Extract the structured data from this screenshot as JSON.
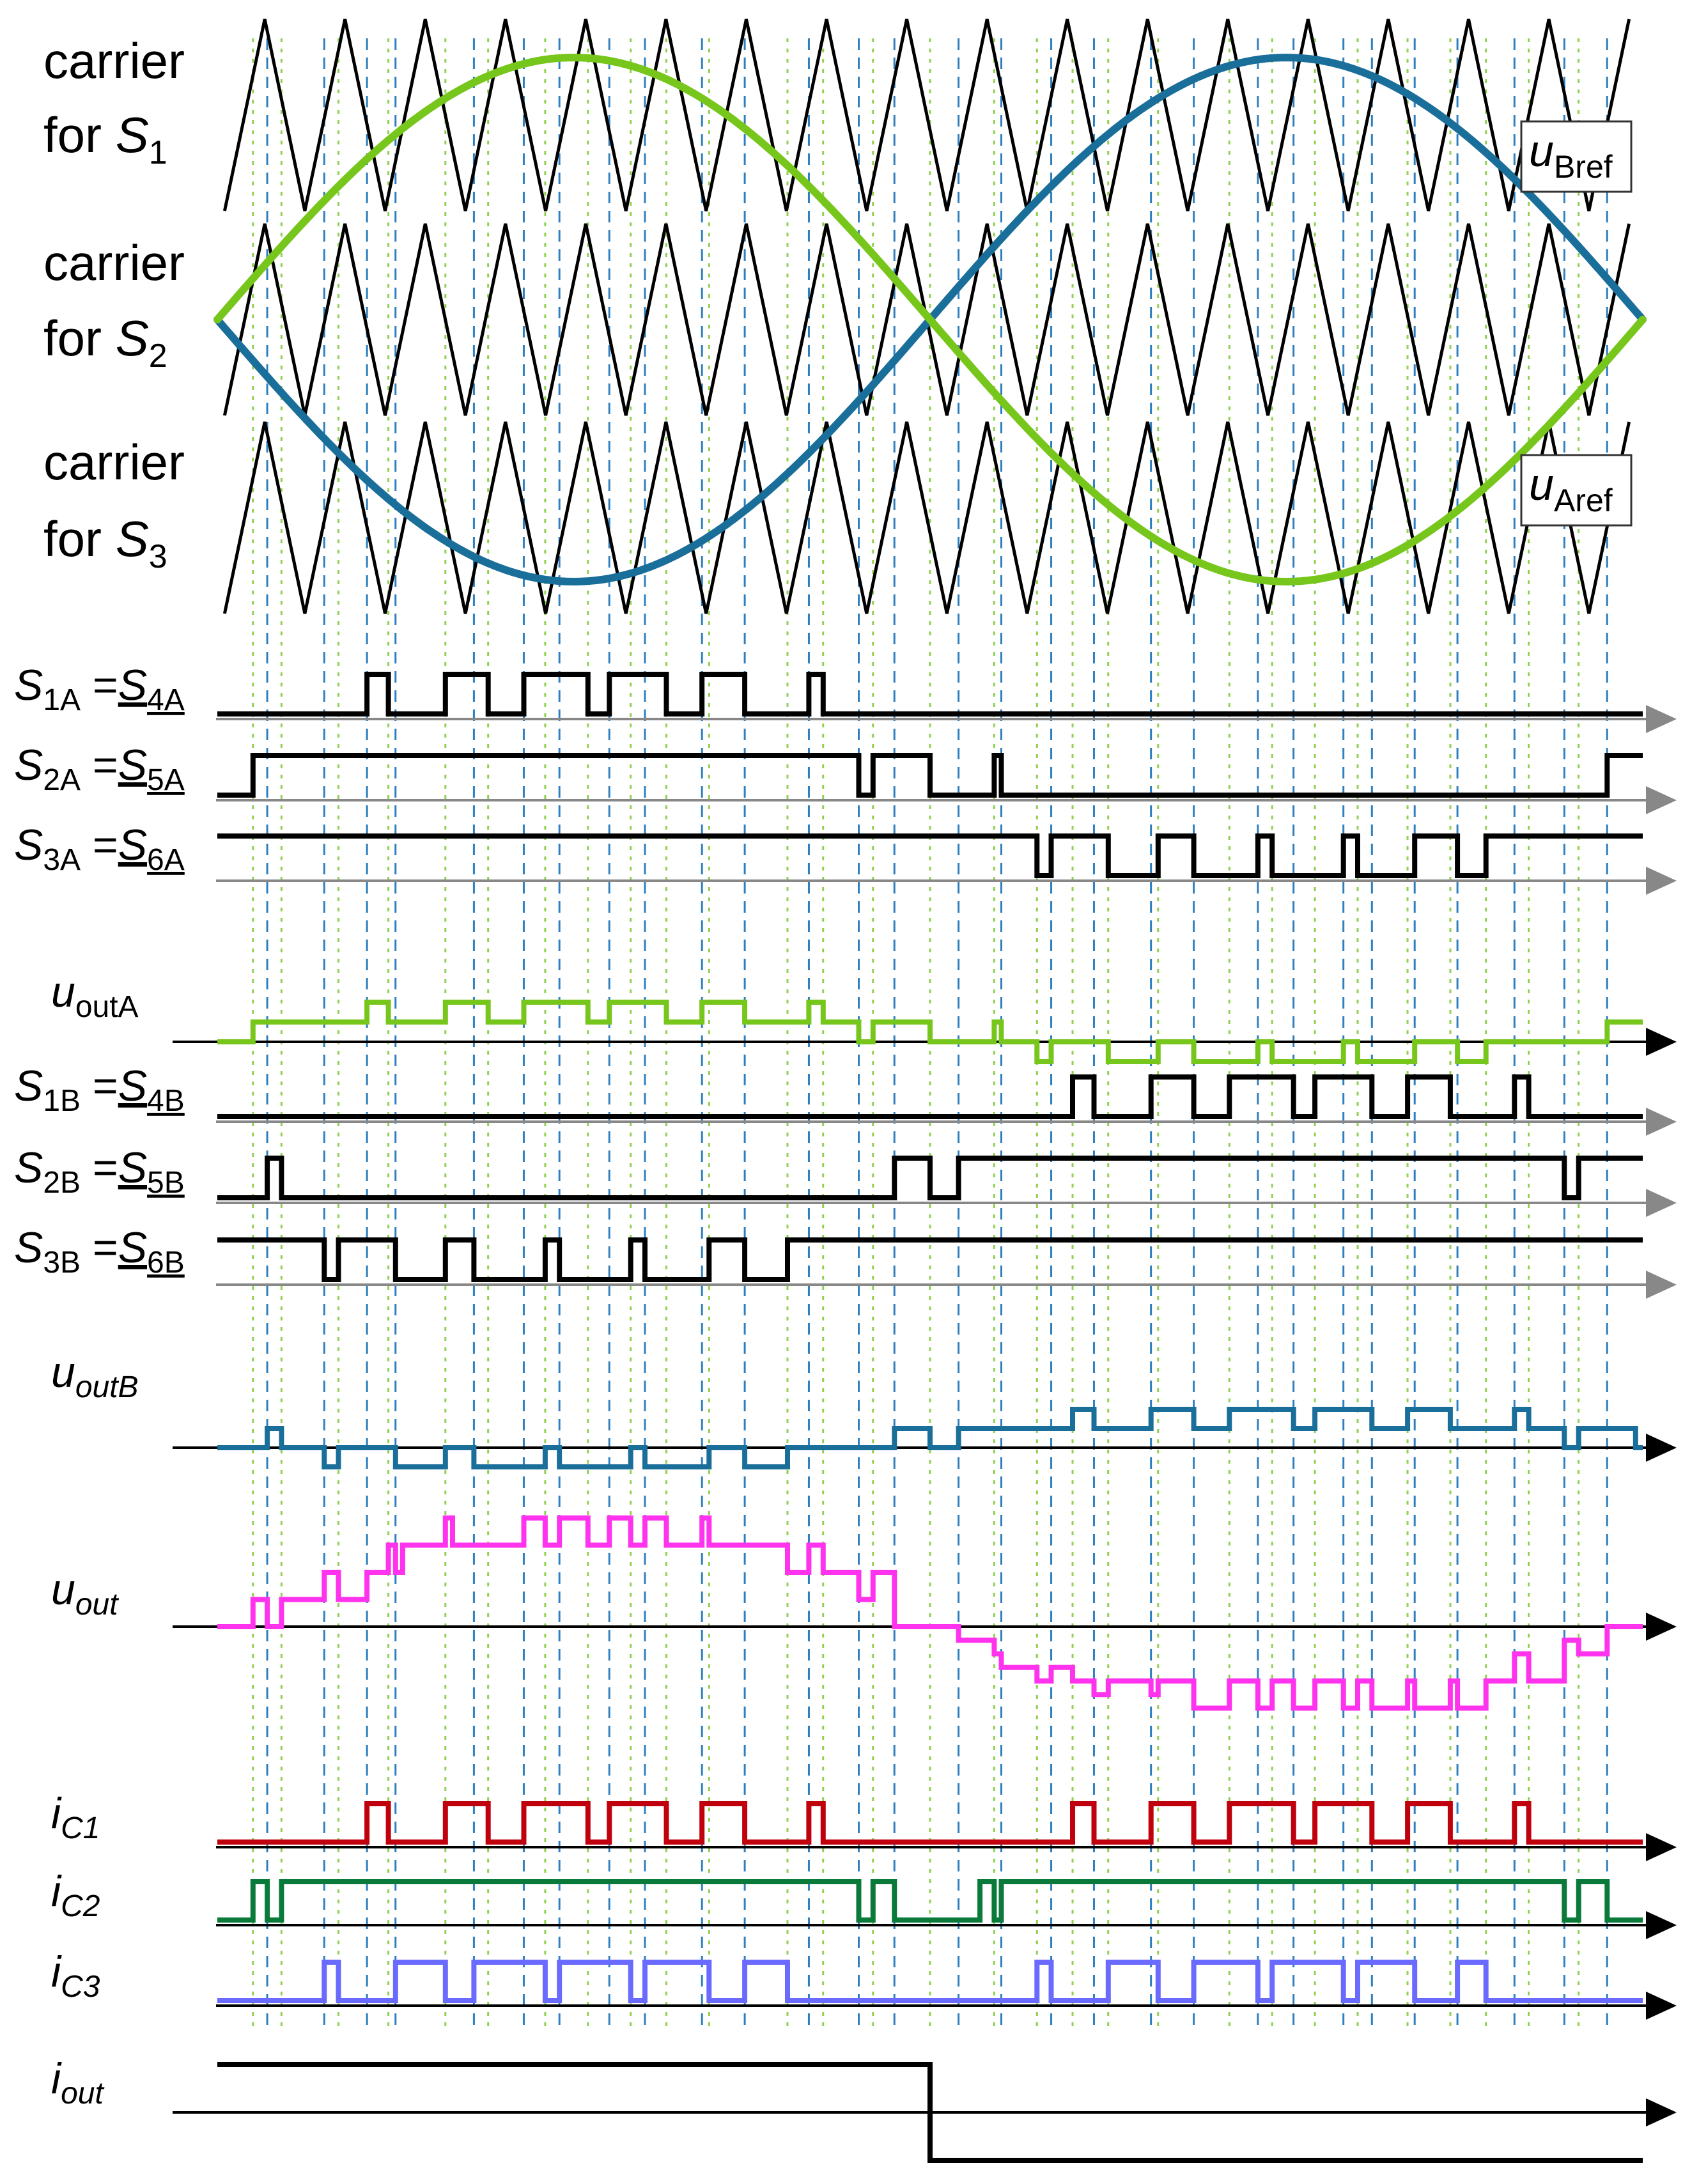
{
  "carrier_labels": [
    {
      "line1": "carrier",
      "line2": "for ",
      "sym": "S",
      "sub": "1"
    },
    {
      "line1": "carrier",
      "line2": "for ",
      "sym": "S",
      "sub": "2"
    },
    {
      "line1": "carrier",
      "line2": "for ",
      "sym": "S",
      "sub": "3"
    }
  ],
  "ref_labels": {
    "b": {
      "sym": "u",
      "sub": "Bref"
    },
    "a": {
      "sym": "u",
      "sub": "Aref"
    }
  },
  "signals": [
    {
      "id": "s1a",
      "label": [
        {
          "t": "S",
          "i": 1
        },
        {
          "t": "1A",
          "sub": 1
        },
        {
          "t": " ="
        },
        {
          "t": "S",
          "i": 1,
          "u": 1
        },
        {
          "t": "4A",
          "sub": 1,
          "u": 1
        }
      ],
      "color": "#000000",
      "levels": [
        "0",
        "1"
      ],
      "seq": [
        [
          0,
          0
        ],
        [
          0.105,
          1
        ],
        [
          0.12,
          0
        ],
        [
          0.16,
          1
        ],
        [
          0.19,
          0
        ],
        [
          0.215,
          1
        ],
        [
          0.26,
          0
        ],
        [
          0.275,
          1
        ],
        [
          0.315,
          0
        ],
        [
          0.34,
          1
        ],
        [
          0.37,
          0
        ],
        [
          0.415,
          1
        ],
        [
          0.425,
          0
        ]
      ]
    },
    {
      "id": "s2a",
      "label": [
        {
          "t": "S",
          "i": 1
        },
        {
          "t": "2A",
          "sub": 1
        },
        {
          "t": " ="
        },
        {
          "t": "S",
          "i": 1,
          "u": 1
        },
        {
          "t": "5A",
          "sub": 1,
          "u": 1
        }
      ],
      "color": "#000000",
      "levels": [
        "0",
        "1"
      ],
      "seq": [
        [
          0,
          0
        ],
        [
          0.025,
          1
        ],
        [
          0.45,
          0
        ],
        [
          0.46,
          1
        ],
        [
          0.5,
          0
        ],
        [
          0.545,
          1
        ],
        [
          0.55,
          0
        ],
        [
          0.975,
          1
        ]
      ]
    },
    {
      "id": "s3a",
      "label": [
        {
          "t": "S",
          "i": 1
        },
        {
          "t": "3A",
          "sub": 1
        },
        {
          "t": " ="
        },
        {
          "t": "S",
          "i": 1,
          "u": 1
        },
        {
          "t": "6A",
          "sub": 1,
          "u": 1
        }
      ],
      "color": "#000000",
      "levels": [
        "0",
        "1"
      ],
      "seq": [
        [
          0,
          1
        ],
        [
          0.575,
          0
        ],
        [
          0.585,
          1
        ],
        [
          0.625,
          0
        ],
        [
          0.66,
          1
        ],
        [
          0.685,
          0
        ],
        [
          0.73,
          1
        ],
        [
          0.74,
          0
        ],
        [
          0.79,
          1
        ],
        [
          0.8,
          0
        ],
        [
          0.84,
          1
        ],
        [
          0.87,
          0
        ],
        [
          0.89,
          1
        ]
      ]
    },
    {
      "id": "uouta",
      "label": [
        {
          "t": "u",
          "i": 1
        },
        {
          "t": "outA",
          "sub": 1
        }
      ],
      "color": "#77c61c",
      "levels": [
        "-1",
        "0",
        "1"
      ],
      "seq": [
        [
          0,
          0
        ],
        [
          0.025,
          0.5
        ],
        [
          0.105,
          1
        ],
        [
          0.12,
          0.5
        ],
        [
          0.16,
          1
        ],
        [
          0.19,
          0.5
        ],
        [
          0.215,
          1
        ],
        [
          0.26,
          0.5
        ],
        [
          0.275,
          1
        ],
        [
          0.315,
          0.5
        ],
        [
          0.34,
          1
        ],
        [
          0.37,
          0.5
        ],
        [
          0.415,
          1
        ],
        [
          0.425,
          0.5
        ],
        [
          0.45,
          0
        ],
        [
          0.46,
          0.5
        ],
        [
          0.5,
          0
        ],
        [
          0.545,
          0.5
        ],
        [
          0.55,
          0
        ],
        [
          0.575,
          -0.5
        ],
        [
          0.585,
          0
        ],
        [
          0.625,
          -0.5
        ],
        [
          0.66,
          0
        ],
        [
          0.685,
          -0.5
        ],
        [
          0.73,
          0
        ],
        [
          0.74,
          -0.5
        ],
        [
          0.79,
          0
        ],
        [
          0.8,
          -0.5
        ],
        [
          0.84,
          0
        ],
        [
          0.87,
          -0.5
        ],
        [
          0.89,
          0
        ],
        [
          0.975,
          0.5
        ]
      ]
    },
    {
      "id": "s1b",
      "label": [
        {
          "t": "S",
          "i": 1
        },
        {
          "t": "1B",
          "sub": 1
        },
        {
          "t": " ="
        },
        {
          "t": "S",
          "i": 1,
          "u": 1
        },
        {
          "t": "4B",
          "sub": 1,
          "u": 1
        }
      ],
      "color": "#000000",
      "levels": [
        "0",
        "1"
      ],
      "seq": [
        [
          0,
          0
        ],
        [
          0.6,
          1
        ],
        [
          0.615,
          0
        ],
        [
          0.655,
          1
        ],
        [
          0.685,
          0
        ],
        [
          0.71,
          1
        ],
        [
          0.755,
          0
        ],
        [
          0.77,
          1
        ],
        [
          0.81,
          0
        ],
        [
          0.835,
          1
        ],
        [
          0.865,
          0
        ],
        [
          0.91,
          1
        ],
        [
          0.92,
          0
        ]
      ]
    },
    {
      "id": "s2b",
      "label": [
        {
          "t": "S",
          "i": 1
        },
        {
          "t": "2B",
          "sub": 1
        },
        {
          "t": " ="
        },
        {
          "t": "S",
          "i": 1,
          "u": 1
        },
        {
          "t": "5B",
          "sub": 1,
          "u": 1
        }
      ],
      "color": "#000000",
      "levels": [
        "0",
        "1"
      ],
      "seq": [
        [
          0,
          0
        ],
        [
          0.035,
          1
        ],
        [
          0.045,
          0
        ],
        [
          0.475,
          1
        ],
        [
          0.5,
          0
        ],
        [
          0.52,
          1
        ],
        [
          0.945,
          0
        ],
        [
          0.955,
          1
        ]
      ]
    },
    {
      "id": "s3b",
      "label": [
        {
          "t": "S",
          "i": 1
        },
        {
          "t": "3B",
          "sub": 1
        },
        {
          "t": " ="
        },
        {
          "t": "S",
          "i": 1,
          "u": 1
        },
        {
          "t": "6B",
          "sub": 1,
          "u": 1
        }
      ],
      "color": "#000000",
      "levels": [
        "0",
        "1"
      ],
      "seq": [
        [
          0,
          1
        ],
        [
          0.075,
          0
        ],
        [
          0.085,
          1
        ],
        [
          0.125,
          0
        ],
        [
          0.16,
          1
        ],
        [
          0.18,
          0
        ],
        [
          0.23,
          1
        ],
        [
          0.24,
          0
        ],
        [
          0.29,
          1
        ],
        [
          0.3,
          0
        ],
        [
          0.345,
          1
        ],
        [
          0.37,
          0
        ],
        [
          0.4,
          1
        ]
      ]
    },
    {
      "id": "uoutb",
      "label": [
        {
          "t": "u",
          "i": 1
        },
        {
          "t": "outB",
          "sub": 1,
          "i": 1
        }
      ],
      "color": "#1a6e9a",
      "levels": [
        "-1",
        "0",
        "1"
      ],
      "seq": [
        [
          0,
          0
        ],
        [
          0.035,
          0.5
        ],
        [
          0.045,
          0
        ],
        [
          0.075,
          -0.5
        ],
        [
          0.085,
          0
        ],
        [
          0.125,
          -0.5
        ],
        [
          0.16,
          0
        ],
        [
          0.18,
          -0.5
        ],
        [
          0.23,
          0
        ],
        [
          0.24,
          -0.5
        ],
        [
          0.29,
          0
        ],
        [
          0.3,
          -0.5
        ],
        [
          0.345,
          0
        ],
        [
          0.37,
          -0.5
        ],
        [
          0.4,
          0
        ],
        [
          0.475,
          0.5
        ],
        [
          0.5,
          0
        ],
        [
          0.52,
          0.5
        ],
        [
          0.6,
          1
        ],
        [
          0.615,
          0.5
        ],
        [
          0.655,
          1
        ],
        [
          0.685,
          0.5
        ],
        [
          0.71,
          1
        ],
        [
          0.755,
          0.5
        ],
        [
          0.77,
          1
        ],
        [
          0.81,
          0.5
        ],
        [
          0.835,
          1
        ],
        [
          0.865,
          0.5
        ],
        [
          0.91,
          1
        ],
        [
          0.92,
          0.5
        ],
        [
          0.945,
          0
        ],
        [
          0.955,
          0.5
        ],
        [
          0.995,
          0
        ]
      ]
    },
    {
      "id": "uout",
      "label": [
        {
          "t": "u",
          "i": 1
        },
        {
          "t": "out",
          "sub": 1,
          "i": 1
        }
      ],
      "color": "#ff33ee",
      "levels": [
        "-2",
        "-1",
        "0",
        "1",
        "2"
      ],
      "seq": [
        [
          0,
          0
        ],
        [
          0.025,
          0.25
        ],
        [
          0.035,
          0
        ],
        [
          0.045,
          0.25
        ],
        [
          0.075,
          0.5
        ],
        [
          0.085,
          0.25
        ],
        [
          0.105,
          0.5
        ],
        [
          0.12,
          0.75
        ],
        [
          0.125,
          0.5
        ],
        [
          0.13,
          0.75
        ],
        [
          0.16,
          1
        ],
        [
          0.165,
          0.75
        ],
        [
          0.19,
          0.75
        ],
        [
          0.215,
          1
        ],
        [
          0.23,
          0.75
        ],
        [
          0.24,
          1
        ],
        [
          0.26,
          0.75
        ],
        [
          0.275,
          1
        ],
        [
          0.29,
          0.75
        ],
        [
          0.3,
          1
        ],
        [
          0.315,
          0.75
        ],
        [
          0.34,
          1
        ],
        [
          0.345,
          0.75
        ],
        [
          0.37,
          0.75
        ],
        [
          0.4,
          0.5
        ],
        [
          0.415,
          0.75
        ],
        [
          0.425,
          0.5
        ],
        [
          0.45,
          0.25
        ],
        [
          0.46,
          0.5
        ],
        [
          0.475,
          0
        ],
        [
          0.5,
          0
        ],
        [
          0.52,
          -0.125
        ],
        [
          0.545,
          -0.25
        ],
        [
          0.55,
          -0.375
        ],
        [
          0.575,
          -0.5
        ],
        [
          0.585,
          -0.375
        ],
        [
          0.6,
          -0.5
        ],
        [
          0.615,
          -0.625
        ],
        [
          0.625,
          -0.5
        ],
        [
          0.655,
          -0.625
        ],
        [
          0.66,
          -0.5
        ],
        [
          0.685,
          -0.75
        ],
        [
          0.71,
          -0.5
        ],
        [
          0.73,
          -0.75
        ],
        [
          0.74,
          -0.5
        ],
        [
          0.755,
          -0.75
        ],
        [
          0.77,
          -0.5
        ],
        [
          0.79,
          -0.75
        ],
        [
          0.8,
          -0.5
        ],
        [
          0.81,
          -0.75
        ],
        [
          0.835,
          -0.5
        ],
        [
          0.84,
          -0.75
        ],
        [
          0.865,
          -0.5
        ],
        [
          0.87,
          -0.75
        ],
        [
          0.89,
          -0.5
        ],
        [
          0.91,
          -0.25
        ],
        [
          0.92,
          -0.5
        ],
        [
          0.945,
          -0.125
        ],
        [
          0.955,
          -0.25
        ],
        [
          0.975,
          0
        ]
      ]
    },
    {
      "id": "ic1",
      "label": [
        {
          "t": "i",
          "i": 1
        },
        {
          "t": "C1",
          "sub": 1,
          "i": 1
        }
      ],
      "color": "#c0000c",
      "levels": [
        "0",
        "1"
      ],
      "seq": [
        [
          0,
          0
        ],
        [
          0.105,
          1
        ],
        [
          0.12,
          0
        ],
        [
          0.16,
          1
        ],
        [
          0.19,
          0
        ],
        [
          0.215,
          1
        ],
        [
          0.26,
          0
        ],
        [
          0.275,
          1
        ],
        [
          0.315,
          0
        ],
        [
          0.34,
          1
        ],
        [
          0.37,
          0
        ],
        [
          0.415,
          1
        ],
        [
          0.425,
          0
        ],
        [
          0.6,
          1
        ],
        [
          0.615,
          0
        ],
        [
          0.655,
          1
        ],
        [
          0.685,
          0
        ],
        [
          0.71,
          1
        ],
        [
          0.755,
          0
        ],
        [
          0.77,
          1
        ],
        [
          0.81,
          0
        ],
        [
          0.835,
          1
        ],
        [
          0.865,
          0
        ],
        [
          0.91,
          1
        ],
        [
          0.92,
          0
        ]
      ]
    },
    {
      "id": "ic2",
      "label": [
        {
          "t": "i",
          "i": 1
        },
        {
          "t": "C2",
          "sub": 1,
          "i": 1
        }
      ],
      "color": "#0a7a3a",
      "levels": [
        "0",
        "1"
      ],
      "seq": [
        [
          0,
          0
        ],
        [
          0.025,
          1
        ],
        [
          0.035,
          0
        ],
        [
          0.045,
          1
        ],
        [
          0.45,
          0
        ],
        [
          0.46,
          1
        ],
        [
          0.475,
          0
        ],
        [
          0.52,
          0
        ],
        [
          0.535,
          1
        ],
        [
          0.545,
          0
        ],
        [
          0.55,
          1
        ],
        [
          0.945,
          0
        ],
        [
          0.955,
          1
        ],
        [
          0.975,
          0
        ]
      ]
    },
    {
      "id": "ic3",
      "label": [
        {
          "t": "i",
          "i": 1
        },
        {
          "t": "C3",
          "sub": 1,
          "i": 1
        }
      ],
      "color": "#6a6aff",
      "levels": [
        "0",
        "1"
      ],
      "seq": [
        [
          0,
          0
        ],
        [
          0.075,
          1
        ],
        [
          0.085,
          0
        ],
        [
          0.125,
          1
        ],
        [
          0.16,
          0
        ],
        [
          0.18,
          1
        ],
        [
          0.23,
          0
        ],
        [
          0.24,
          1
        ],
        [
          0.29,
          0
        ],
        [
          0.3,
          1
        ],
        [
          0.345,
          0
        ],
        [
          0.37,
          1
        ],
        [
          0.4,
          0
        ],
        [
          0.575,
          1
        ],
        [
          0.585,
          0
        ],
        [
          0.625,
          1
        ],
        [
          0.66,
          0
        ],
        [
          0.685,
          1
        ],
        [
          0.73,
          0
        ],
        [
          0.74,
          1
        ],
        [
          0.79,
          0
        ],
        [
          0.8,
          1
        ],
        [
          0.84,
          0
        ],
        [
          0.87,
          1
        ],
        [
          0.89,
          0
        ]
      ]
    },
    {
      "id": "iout",
      "label": [
        {
          "t": "i",
          "i": 1
        },
        {
          "t": "out",
          "sub": 1,
          "i": 1
        }
      ],
      "color": "#000000",
      "levels": [
        "-1",
        "0",
        "1"
      ],
      "seq": [
        [
          0,
          1
        ],
        [
          0.5,
          -1
        ]
      ]
    }
  ],
  "colors": {
    "ref_a": "#77c61c",
    "ref_b": "#1a6e9a",
    "guide_green": "#8fd14f",
    "guide_blue": "#2f7fbf"
  }
}
